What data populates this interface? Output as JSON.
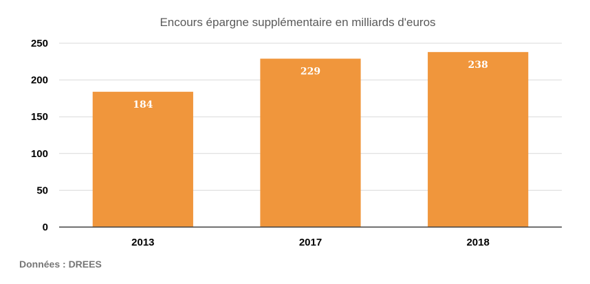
{
  "chart_data": {
    "type": "bar",
    "title": "Encours épargne supplémentaire en milliards d'euros",
    "categories": [
      "2013",
      "2017",
      "2018"
    ],
    "values": [
      184,
      229,
      238
    ],
    "data_labels": [
      "184",
      "229",
      "238"
    ],
    "ylim": [
      0,
      250
    ],
    "yticks": [
      0,
      50,
      100,
      150,
      200,
      250
    ],
    "ytick_labels": [
      "0",
      "50",
      "100",
      "150",
      "200",
      "250"
    ],
    "xlabel": "",
    "ylabel": "",
    "grid": true,
    "legend": "none",
    "bar_color": "#F0963C",
    "note": "Données : DREES"
  }
}
